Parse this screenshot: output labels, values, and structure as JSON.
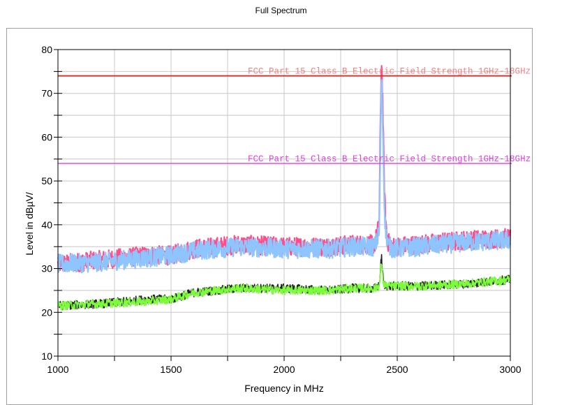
{
  "title": "Full Spectrum",
  "chart_data": {
    "type": "line",
    "title": "Full Spectrum",
    "xlabel": "Frequency in MHz",
    "ylabel": "Level in dBµV/",
    "xlim": [
      1000,
      3000
    ],
    "ylim": [
      10,
      80
    ],
    "x_ticks": [
      1000,
      1500,
      2000,
      2500,
      3000
    ],
    "y_ticks": [
      10,
      20,
      30,
      40,
      50,
      60,
      70,
      80
    ],
    "grid": true,
    "limit_lines": [
      {
        "label": "FCC Part 15 Class B Electric Field Strength 1GHz-18GHz",
        "value": 74,
        "color": "#e03030",
        "label_color": "#f08080"
      },
      {
        "label": "FCC Part 15 Class B Electric Field Strength 1GHz-18GHz",
        "value": 54,
        "color": "#e040e0",
        "label_color": "#e040e0"
      }
    ],
    "series": [
      {
        "color": "#ff4f8b",
        "x": [
          1000,
          1200,
          1400,
          1500,
          1600,
          1800,
          2000,
          2200,
          2300,
          2400,
          2420,
          2425,
          2430,
          2435,
          2440,
          2445,
          2450,
          2460,
          2480,
          2600,
          2800,
          3000
        ],
        "values": [
          31,
          32,
          33,
          33,
          34.5,
          35.5,
          35,
          35,
          35.5,
          35.5,
          40,
          60,
          78,
          70,
          55,
          45,
          40,
          36,
          35,
          35.5,
          36.5,
          37
        ]
      },
      {
        "color": "#8ec5ff",
        "x": [
          1000,
          1200,
          1400,
          1500,
          1600,
          1800,
          2000,
          2200,
          2300,
          2400,
          2420,
          2425,
          2430,
          2435,
          2440,
          2445,
          2450,
          2460,
          2480,
          2600,
          2800,
          3000
        ],
        "values": [
          31,
          31.5,
          32.5,
          33,
          34,
          35,
          34.5,
          34.5,
          35,
          35,
          38,
          55,
          75,
          65,
          52,
          42,
          38,
          35.5,
          34.5,
          35,
          36,
          36.5
        ]
      },
      {
        "color": "#222222",
        "x": [
          1000,
          1200,
          1400,
          1500,
          1600,
          1800,
          2000,
          2200,
          2300,
          2400,
          2420,
          2425,
          2430,
          2435,
          2440,
          2450,
          2480,
          2600,
          2800,
          3000
        ],
        "values": [
          21.5,
          22,
          23,
          23,
          24.5,
          25.5,
          25.5,
          25,
          25.5,
          25.5,
          26,
          29,
          33,
          29,
          26.5,
          26,
          26,
          26,
          26.5,
          27.5
        ]
      },
      {
        "color": "#7cfc3c",
        "x": [
          1000,
          1200,
          1400,
          1500,
          1600,
          1800,
          2000,
          2200,
          2300,
          2400,
          2420,
          2425,
          2430,
          2435,
          2440,
          2450,
          2480,
          2600,
          2800,
          3000
        ],
        "values": [
          21.5,
          22,
          22.5,
          23,
          24.5,
          25.5,
          25,
          25,
          25.5,
          25.5,
          26,
          28,
          32,
          28,
          26.5,
          26,
          26,
          26,
          26.5,
          27.5
        ]
      }
    ]
  }
}
